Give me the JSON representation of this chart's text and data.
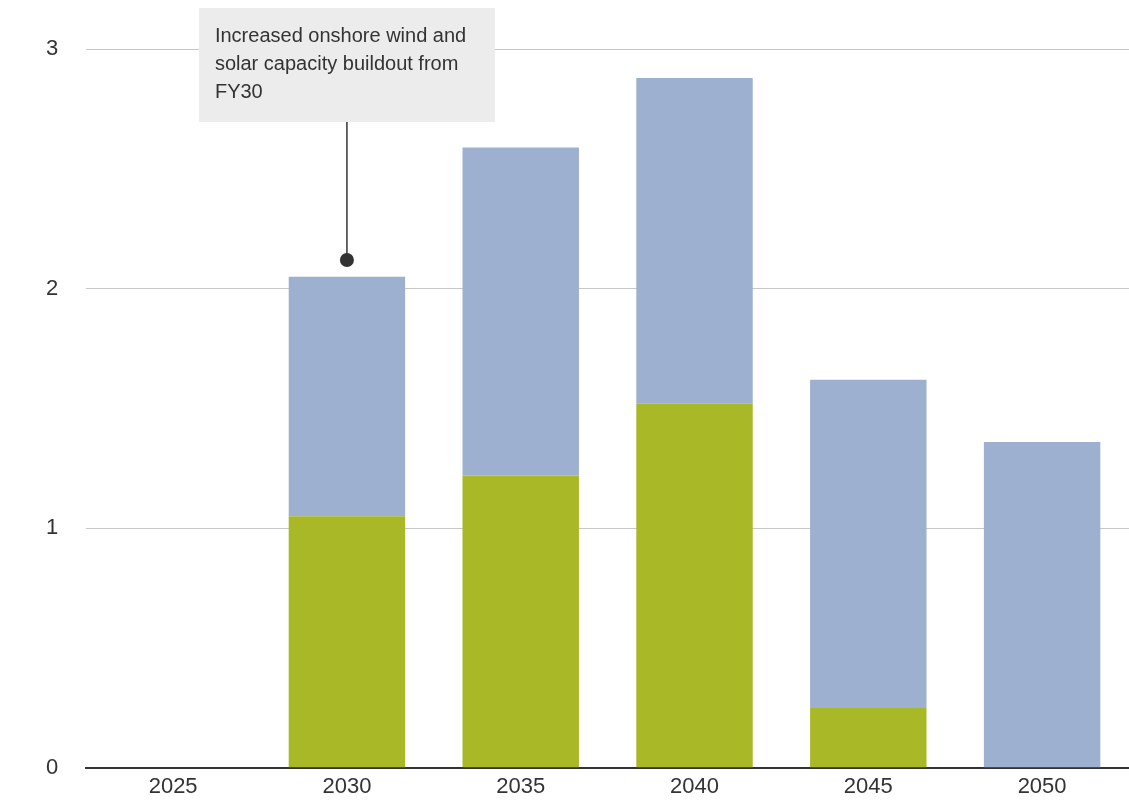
{
  "chart_data": {
    "type": "bar",
    "categories": [
      "2025",
      "2030",
      "2035",
      "2040",
      "2045",
      "2050"
    ],
    "series": [
      {
        "color": "#a8b827",
        "values": [
          0,
          1.05,
          1.22,
          1.52,
          0.25,
          0
        ]
      },
      {
        "color": "#9eb0cf",
        "values": [
          0,
          1.0,
          1.37,
          1.36,
          1.37,
          1.36
        ]
      }
    ],
    "stacked": true,
    "ylim": [
      0,
      3
    ],
    "yticks": [
      0,
      1,
      2,
      3
    ],
    "grid": "y",
    "legend": false,
    "annotations": [
      {
        "text": "Increased onshore wind and solar capacity buildout from FY30",
        "x": "2030",
        "y": 2.12
      }
    ]
  }
}
